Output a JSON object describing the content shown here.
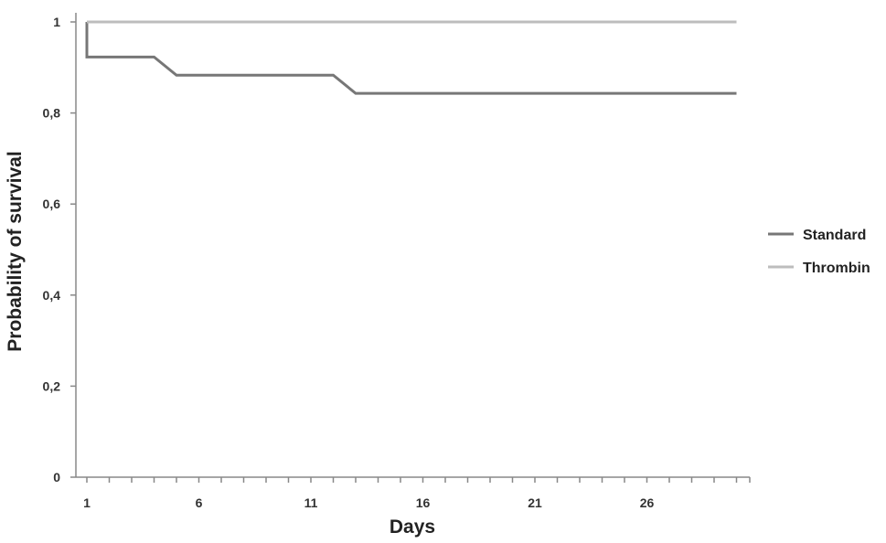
{
  "chart_data": {
    "type": "line",
    "step": true,
    "xlabel": "Days",
    "ylabel": "Probability of survival",
    "xlim": [
      1,
      30
    ],
    "ylim": [
      0,
      1
    ],
    "x_ticks": [
      1,
      6,
      11,
      16,
      21,
      26
    ],
    "y_ticks": [
      0,
      0.2,
      0.4,
      0.6,
      0.8,
      1
    ],
    "y_tick_labels": [
      "0",
      "0,2",
      "0,4",
      "0,6",
      "0,8",
      "1"
    ],
    "grid": false,
    "legend": "right",
    "series": [
      {
        "name": "Standard",
        "color": "#777777",
        "points": [
          [
            1,
            1
          ],
          [
            1,
            0.923
          ],
          [
            4,
            0.923
          ],
          [
            5,
            0.883
          ],
          [
            12,
            0.883
          ],
          [
            13,
            0.843
          ],
          [
            30,
            0.843
          ]
        ]
      },
      {
        "name": "Thrombin",
        "color": "#bdbdbd",
        "points": [
          [
            1,
            1
          ],
          [
            30,
            1
          ]
        ]
      }
    ]
  }
}
